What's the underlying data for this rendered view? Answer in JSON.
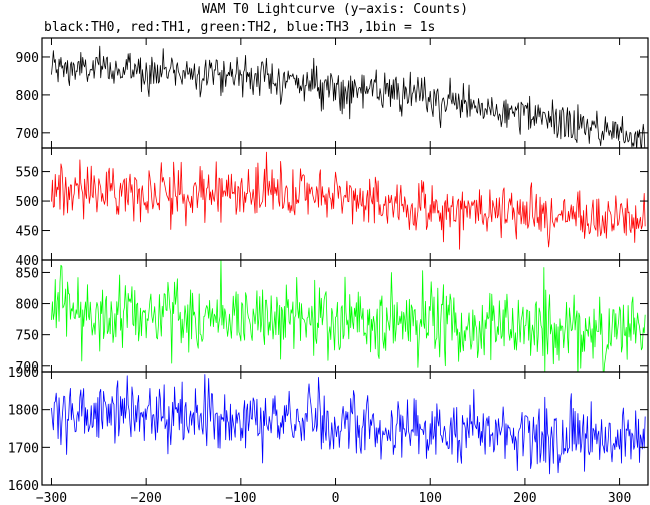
{
  "chart_data": {
    "type": "line",
    "title": "WAM T0 Lightcurve (y−axis: Counts)",
    "subtitle": "black:TH0, red:TH1, green:TH2, blue:TH3 ,1bin = 1s",
    "xlabel": "",
    "x_range": [
      -310,
      330
    ],
    "x_data_range": [
      -300,
      327
    ],
    "x_bin": 1,
    "x_ticks": [
      -300,
      -200,
      -100,
      0,
      100,
      200,
      300
    ],
    "x_tick_labels": [
      "−300",
      "−200",
      "−100",
      "0",
      "100",
      "200",
      "300"
    ],
    "grid": false,
    "panels": [
      {
        "name": "TH0",
        "color": "#000000",
        "ylim": [
          660,
          950
        ],
        "y_ticks": [
          700,
          800,
          900
        ],
        "y_tick_labels": [
          "700",
          "800",
          "900"
        ],
        "trend": [
          [
            -300,
            870
          ],
          [
            -150,
            862
          ],
          [
            -100,
            855
          ],
          [
            0,
            820
          ],
          [
            100,
            790
          ],
          [
            200,
            745
          ],
          [
            300,
            700
          ],
          [
            327,
            690
          ]
        ],
        "noise_sd": 25
      },
      {
        "name": "TH1",
        "color": "#ff0000",
        "ylim": [
          400,
          590
        ],
        "y_ticks": [
          400,
          450,
          500,
          550
        ],
        "y_tick_labels": [
          "400",
          "450",
          "500",
          "550"
        ],
        "trend": [
          [
            -300,
            520
          ],
          [
            -150,
            515
          ],
          [
            0,
            512
          ],
          [
            50,
            495
          ],
          [
            100,
            488
          ],
          [
            200,
            478
          ],
          [
            300,
            470
          ],
          [
            327,
            465
          ]
        ],
        "noise_sd": 22
      },
      {
        "name": "TH2",
        "color": "#00ff00",
        "ylim": [
          690,
          870
        ],
        "y_ticks": [
          700,
          750,
          800,
          850
        ],
        "y_tick_labels": [
          "700",
          "750",
          "800",
          "850"
        ],
        "trend": [
          [
            -300,
            790
          ],
          [
            -150,
            782
          ],
          [
            0,
            772
          ],
          [
            100,
            768
          ],
          [
            200,
            762
          ],
          [
            300,
            758
          ],
          [
            327,
            755
          ]
        ],
        "noise_sd": 30
      },
      {
        "name": "TH3",
        "color": "#0000ff",
        "ylim": [
          1600,
          1900
        ],
        "y_ticks": [
          1600,
          1700,
          1800,
          1900
        ],
        "y_tick_labels": [
          "1600",
          "1700",
          "1800",
          "1900"
        ],
        "trend": [
          [
            -300,
            1795
          ],
          [
            -150,
            1782
          ],
          [
            0,
            1760
          ],
          [
            100,
            1748
          ],
          [
            200,
            1732
          ],
          [
            300,
            1720
          ],
          [
            327,
            1718
          ]
        ],
        "noise_sd": 42
      }
    ]
  }
}
